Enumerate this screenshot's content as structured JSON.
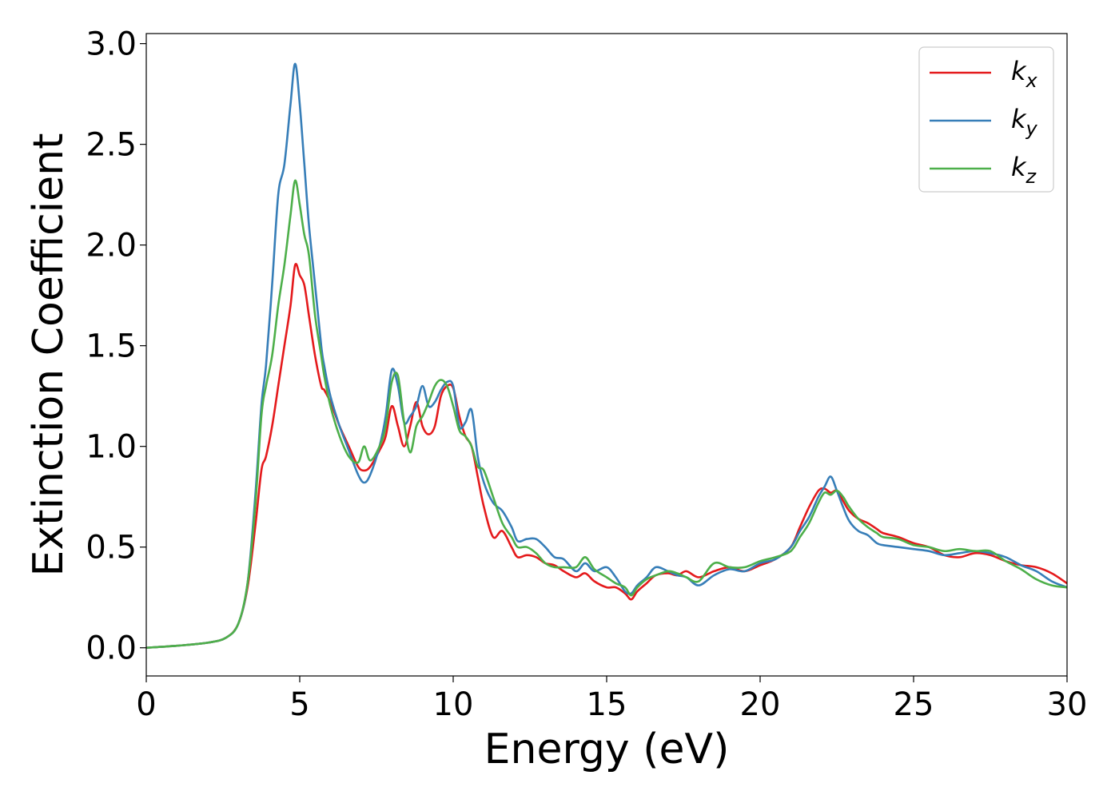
{
  "chart_data": {
    "type": "line",
    "title": "",
    "xlabel": "Energy (eV)",
    "ylabel": "Extinction Coefficient",
    "xlim": [
      0,
      30
    ],
    "ylim": [
      -0.14,
      3.05
    ],
    "xticks": [
      0,
      5,
      10,
      15,
      20,
      25,
      30
    ],
    "xtick_labels": [
      "0",
      "5",
      "10",
      "15",
      "20",
      "25",
      "30"
    ],
    "yticks": [
      0.0,
      0.5,
      1.0,
      1.5,
      2.0,
      2.5,
      3.0
    ],
    "ytick_labels": [
      "0.0",
      "0.5",
      "1.0",
      "1.5",
      "2.0",
      "2.5",
      "3.0"
    ],
    "grid": false,
    "legend_position": "top-right",
    "series": [
      {
        "name": "k",
        "subscript": "x",
        "color": "#e41a1c",
        "x": [
          0,
          1,
          2,
          2.6,
          3.0,
          3.3,
          3.55,
          3.75,
          3.9,
          4.1,
          4.3,
          4.5,
          4.7,
          4.85,
          5.0,
          5.15,
          5.3,
          5.5,
          5.7,
          5.8,
          6.0,
          6.3,
          6.6,
          6.9,
          7.1,
          7.3,
          7.6,
          7.8,
          8.0,
          8.2,
          8.4,
          8.6,
          8.8,
          9.0,
          9.2,
          9.4,
          9.6,
          9.8,
          10.0,
          10.2,
          10.4,
          10.6,
          10.8,
          11.0,
          11.3,
          11.6,
          11.9,
          12.1,
          12.4,
          12.7,
          13.0,
          13.3,
          13.6,
          14.0,
          14.3,
          14.6,
          15.0,
          15.3,
          15.6,
          15.8,
          16.0,
          16.3,
          16.6,
          17.0,
          17.3,
          17.6,
          18.0,
          18.5,
          19.0,
          19.5,
          20.0,
          20.5,
          21.0,
          21.3,
          21.6,
          21.9,
          22.1,
          22.3,
          22.5,
          22.7,
          22.9,
          23.2,
          23.5,
          23.8,
          24.0,
          24.5,
          25.0,
          25.5,
          26.0,
          26.5,
          27.0,
          27.5,
          28.0,
          28.5,
          29.0,
          29.5,
          30.0
        ],
        "y": [
          0.0,
          0.01,
          0.025,
          0.05,
          0.12,
          0.3,
          0.6,
          0.88,
          0.95,
          1.1,
          1.3,
          1.5,
          1.7,
          1.9,
          1.85,
          1.8,
          1.65,
          1.45,
          1.3,
          1.28,
          1.22,
          1.1,
          1.0,
          0.9,
          0.88,
          0.9,
          0.98,
          1.05,
          1.2,
          1.1,
          1.0,
          1.1,
          1.22,
          1.1,
          1.06,
          1.1,
          1.25,
          1.3,
          1.29,
          1.15,
          1.05,
          1.0,
          0.85,
          0.7,
          0.55,
          0.58,
          0.5,
          0.45,
          0.46,
          0.45,
          0.42,
          0.41,
          0.38,
          0.35,
          0.37,
          0.33,
          0.3,
          0.3,
          0.27,
          0.24,
          0.28,
          0.32,
          0.36,
          0.37,
          0.36,
          0.38,
          0.35,
          0.38,
          0.4,
          0.38,
          0.41,
          0.44,
          0.5,
          0.6,
          0.7,
          0.78,
          0.79,
          0.77,
          0.78,
          0.73,
          0.68,
          0.64,
          0.62,
          0.59,
          0.57,
          0.55,
          0.52,
          0.5,
          0.46,
          0.45,
          0.47,
          0.46,
          0.43,
          0.41,
          0.4,
          0.37,
          0.32
        ]
      },
      {
        "name": "k",
        "subscript": "y",
        "color": "#377eb8",
        "x": [
          0,
          1,
          2,
          2.6,
          3.0,
          3.3,
          3.55,
          3.75,
          3.9,
          4.1,
          4.3,
          4.5,
          4.7,
          4.85,
          5.0,
          5.15,
          5.3,
          5.5,
          5.7,
          5.8,
          6.0,
          6.3,
          6.6,
          6.9,
          7.1,
          7.3,
          7.6,
          7.8,
          8.0,
          8.2,
          8.4,
          8.6,
          8.8,
          9.0,
          9.2,
          9.4,
          9.6,
          9.8,
          10.0,
          10.2,
          10.4,
          10.6,
          10.8,
          11.0,
          11.3,
          11.6,
          11.9,
          12.1,
          12.4,
          12.7,
          13.0,
          13.3,
          13.6,
          14.0,
          14.3,
          14.6,
          15.0,
          15.3,
          15.6,
          15.8,
          16.0,
          16.3,
          16.6,
          17.0,
          17.3,
          17.6,
          18.0,
          18.5,
          19.0,
          19.5,
          20.0,
          20.5,
          21.0,
          21.3,
          21.6,
          21.9,
          22.1,
          22.3,
          22.5,
          22.7,
          22.9,
          23.2,
          23.5,
          23.8,
          24.0,
          24.5,
          25.0,
          25.5,
          26.0,
          26.5,
          27.0,
          27.5,
          28.0,
          28.5,
          29.0,
          29.5,
          30.0
        ],
        "y": [
          0.0,
          0.01,
          0.025,
          0.05,
          0.12,
          0.32,
          0.75,
          1.2,
          1.4,
          1.8,
          2.25,
          2.4,
          2.7,
          2.9,
          2.7,
          2.4,
          2.1,
          1.8,
          1.5,
          1.4,
          1.25,
          1.1,
          0.98,
          0.86,
          0.82,
          0.86,
          1.0,
          1.15,
          1.38,
          1.3,
          1.12,
          1.15,
          1.2,
          1.3,
          1.2,
          1.22,
          1.28,
          1.32,
          1.3,
          1.1,
          1.12,
          1.18,
          0.95,
          0.82,
          0.72,
          0.68,
          0.6,
          0.53,
          0.54,
          0.54,
          0.5,
          0.45,
          0.44,
          0.38,
          0.42,
          0.38,
          0.4,
          0.35,
          0.28,
          0.27,
          0.31,
          0.35,
          0.4,
          0.38,
          0.36,
          0.35,
          0.31,
          0.36,
          0.39,
          0.38,
          0.42,
          0.44,
          0.5,
          0.58,
          0.65,
          0.75,
          0.8,
          0.85,
          0.78,
          0.7,
          0.63,
          0.58,
          0.56,
          0.52,
          0.51,
          0.5,
          0.49,
          0.48,
          0.46,
          0.47,
          0.48,
          0.47,
          0.45,
          0.41,
          0.38,
          0.33,
          0.3
        ]
      },
      {
        "name": "k",
        "subscript": "z",
        "color": "#4daf4a",
        "x": [
          0,
          1,
          2,
          2.6,
          3.0,
          3.3,
          3.55,
          3.75,
          3.9,
          4.1,
          4.3,
          4.5,
          4.7,
          4.85,
          5.0,
          5.15,
          5.3,
          5.5,
          5.7,
          5.8,
          6.0,
          6.3,
          6.6,
          6.9,
          7.1,
          7.3,
          7.6,
          7.8,
          8.0,
          8.2,
          8.4,
          8.6,
          8.8,
          9.0,
          9.2,
          9.4,
          9.6,
          9.8,
          10.0,
          10.2,
          10.4,
          10.6,
          10.8,
          11.0,
          11.3,
          11.6,
          11.9,
          12.1,
          12.4,
          12.7,
          13.0,
          13.3,
          13.6,
          14.0,
          14.3,
          14.6,
          15.0,
          15.3,
          15.6,
          15.8,
          16.0,
          16.3,
          16.6,
          17.0,
          17.3,
          17.6,
          18.0,
          18.5,
          19.0,
          19.5,
          20.0,
          20.5,
          21.0,
          21.3,
          21.6,
          21.9,
          22.1,
          22.3,
          22.5,
          22.7,
          22.9,
          23.2,
          23.5,
          23.8,
          24.0,
          24.5,
          25.0,
          25.5,
          26.0,
          26.5,
          27.0,
          27.5,
          28.0,
          28.5,
          29.0,
          29.5,
          30.0
        ],
        "y": [
          0.0,
          0.01,
          0.025,
          0.05,
          0.12,
          0.32,
          0.7,
          1.15,
          1.3,
          1.45,
          1.7,
          1.9,
          2.15,
          2.32,
          2.2,
          2.05,
          1.95,
          1.65,
          1.45,
          1.35,
          1.2,
          1.05,
          0.95,
          0.92,
          1.0,
          0.93,
          1.0,
          1.1,
          1.32,
          1.35,
          1.12,
          0.97,
          1.1,
          1.15,
          1.22,
          1.3,
          1.33,
          1.3,
          1.2,
          1.08,
          1.05,
          1.0,
          0.9,
          0.88,
          0.75,
          0.62,
          0.55,
          0.5,
          0.5,
          0.47,
          0.42,
          0.4,
          0.4,
          0.4,
          0.45,
          0.39,
          0.35,
          0.32,
          0.3,
          0.26,
          0.3,
          0.34,
          0.36,
          0.38,
          0.37,
          0.35,
          0.33,
          0.42,
          0.4,
          0.4,
          0.43,
          0.45,
          0.48,
          0.55,
          0.62,
          0.72,
          0.77,
          0.76,
          0.78,
          0.75,
          0.7,
          0.64,
          0.6,
          0.57,
          0.55,
          0.54,
          0.51,
          0.5,
          0.48,
          0.49,
          0.48,
          0.48,
          0.43,
          0.39,
          0.34,
          0.31,
          0.3
        ]
      }
    ]
  }
}
